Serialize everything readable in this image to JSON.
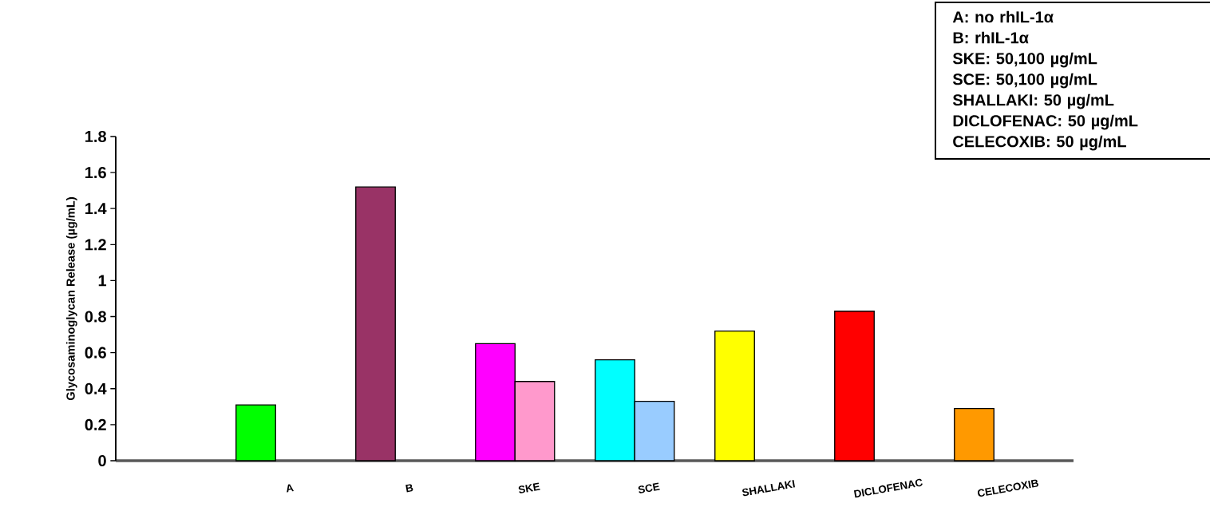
{
  "chart_data": {
    "type": "bar",
    "ylabel": "Glycosaminoglycan Release (µg/mL)",
    "categories": [
      "A",
      "B",
      "SKE",
      "SCE",
      "SHALLAKI",
      "DICLOFENAC",
      "CELECOXIB"
    ],
    "series": [
      {
        "values": [
          0.31,
          1.52,
          0.65,
          0.56,
          0.72,
          0.83,
          0.29
        ],
        "colors": [
          "#00ff00",
          "#993366",
          "#ff00ff",
          "#00ffff",
          "#ffff00",
          "#ff0000",
          "#ff9900"
        ]
      },
      {
        "values": [
          null,
          null,
          0.44,
          0.33,
          null,
          null,
          null
        ],
        "colors": [
          null,
          null,
          "#ff99cc",
          "#99ccff",
          null,
          null,
          null
        ]
      }
    ],
    "ylim": [
      0,
      1.8
    ],
    "yticks": [
      0,
      0.2,
      0.4,
      0.6,
      0.8,
      1,
      1.2,
      1.4,
      1.6,
      1.8
    ],
    "annotations": [
      "A: no rhIL-1α",
      "B:  rhIL-1α",
      "SKE: 50,100 µg/mL",
      "SCE: 50,100 µg/mL",
      "SHALLAKI: 50 µg/mL",
      "DICLOFENAC: 50 µg/mL",
      "CELECOXIB: 50 µg/mL"
    ]
  }
}
